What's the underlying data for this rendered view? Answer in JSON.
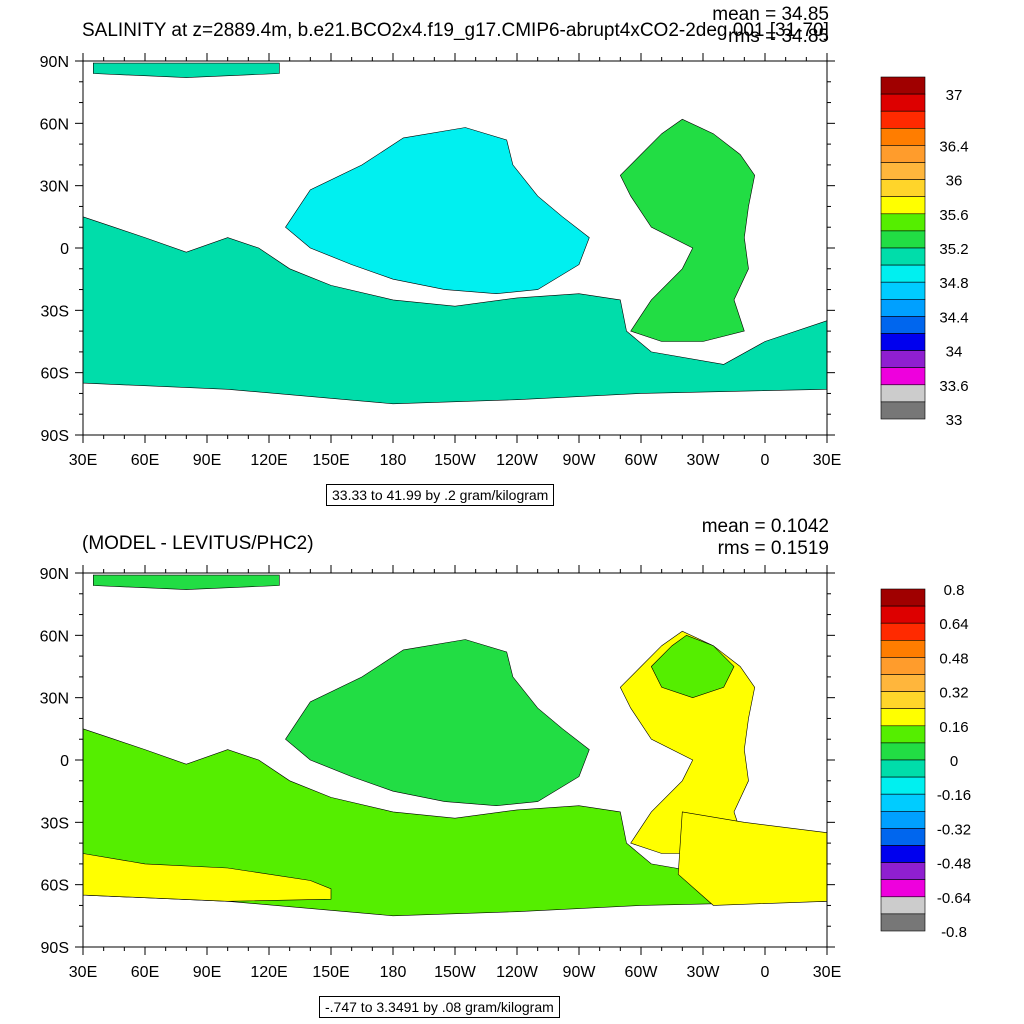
{
  "chart_data": [
    {
      "type": "heatmap",
      "title": "SALINITY at z=2889.4m, b.e21.BCO2x4.f19_g17.CMIP6-abrupt4xCO2-2deg.001 [31-70]",
      "stats": {
        "mean": "mean = 34.85",
        "rms": "rms = 34.85"
      },
      "x_ticks": [
        "30E",
        "60E",
        "90E",
        "120E",
        "150E",
        "180",
        "150W",
        "120W",
        "90W",
        "60W",
        "30W",
        "0",
        "30E"
      ],
      "y_ticks": [
        "90N",
        "60N",
        "30N",
        "0",
        "30S",
        "60S",
        "90S"
      ],
      "xlim": [
        30,
        390
      ],
      "ylim": [
        -90,
        90
      ],
      "range_note": "33.33 to 41.99 by .2 gram/kilogram",
      "legend": {
        "placement": "right",
        "colors": [
          "#a00000",
          "#dd0000",
          "#ff2a00",
          "#ff7d00",
          "#ff9c2c",
          "#ffb63c",
          "#ffd52a",
          "#ffff00",
          "#55ee00",
          "#22dd44",
          "#00ddaa",
          "#00f0f0",
          "#00ccff",
          "#00a0ff",
          "#0066ee",
          "#0000ee",
          "#8f1fd0",
          "#ee00dd",
          "#cccccc",
          "#777777"
        ],
        "labels": [
          {
            "text": "37",
            "boundary": 1
          },
          {
            "text": "36.4",
            "boundary": 4
          },
          {
            "text": "36",
            "boundary": 6
          },
          {
            "text": "35.6",
            "boundary": 8
          },
          {
            "text": "35.2",
            "boundary": 10
          },
          {
            "text": "34.8",
            "boundary": 12
          },
          {
            "text": "34.4",
            "boundary": 14
          },
          {
            "text": "34",
            "boundary": 16
          },
          {
            "text": "33.6",
            "boundary": 18
          },
          {
            "text": "33",
            "boundary": 20
          }
        ]
      },
      "regions": [
        {
          "name": "arctic",
          "fill": "#00ddaa",
          "points": [
            [
              35,
              89
            ],
            [
              125,
              89
            ],
            [
              125,
              84
            ],
            [
              80,
              82
            ],
            [
              35,
              84
            ]
          ]
        },
        {
          "name": "pacific-north",
          "fill": "#00f0f0",
          "points": [
            [
              128,
              10
            ],
            [
              140,
              28
            ],
            [
              165,
              40
            ],
            [
              185,
              53
            ],
            [
              215,
              58
            ],
            [
              235,
              52
            ],
            [
              238,
              40
            ],
            [
              250,
              25
            ],
            [
              262,
              15
            ],
            [
              275,
              5
            ],
            [
              270,
              -8
            ],
            [
              250,
              -20
            ],
            [
              230,
              -22
            ],
            [
              205,
              -20
            ],
            [
              180,
              -15
            ],
            [
              160,
              -8
            ],
            [
              140,
              0
            ]
          ]
        },
        {
          "name": "southern-indo-pacific",
          "fill": "#00ddaa",
          "points": [
            [
              30,
              15
            ],
            [
              45,
              10
            ],
            [
              60,
              5
            ],
            [
              80,
              -2
            ],
            [
              100,
              5
            ],
            [
              115,
              0
            ],
            [
              130,
              -10
            ],
            [
              150,
              -18
            ],
            [
              180,
              -25
            ],
            [
              210,
              -28
            ],
            [
              240,
              -24
            ],
            [
              270,
              -22
            ],
            [
              290,
              -25
            ],
            [
              293,
              -40
            ],
            [
              305,
              -50
            ],
            [
              340,
              -56
            ],
            [
              360,
              -45
            ],
            [
              390,
              -35
            ],
            [
              390,
              -68
            ],
            [
              300,
              -70
            ],
            [
              240,
              -73
            ],
            [
              180,
              -75
            ],
            [
              100,
              -68
            ],
            [
              30,
              -65
            ]
          ]
        },
        {
          "name": "atlantic",
          "fill": "#22dd44",
          "points": [
            [
              290,
              35
            ],
            [
              300,
              45
            ],
            [
              310,
              55
            ],
            [
              320,
              62
            ],
            [
              335,
              55
            ],
            [
              348,
              45
            ],
            [
              355,
              35
            ],
            [
              352,
              20
            ],
            [
              350,
              5
            ],
            [
              352,
              -10
            ],
            [
              345,
              -25
            ],
            [
              350,
              -40
            ],
            [
              330,
              -45
            ],
            [
              310,
              -45
            ],
            [
              295,
              -40
            ],
            [
              305,
              -25
            ],
            [
              320,
              -10
            ],
            [
              325,
              0
            ],
            [
              305,
              10
            ],
            [
              295,
              25
            ]
          ]
        }
      ]
    },
    {
      "type": "heatmap",
      "title": "(MODEL - LEVITUS/PHC2)",
      "stats": {
        "mean": "mean = 0.1042",
        "rms": "rms = 0.1519"
      },
      "x_ticks": [
        "30E",
        "60E",
        "90E",
        "120E",
        "150E",
        "180",
        "150W",
        "120W",
        "90W",
        "60W",
        "30W",
        "0",
        "30E"
      ],
      "y_ticks": [
        "90N",
        "60N",
        "30N",
        "0",
        "30S",
        "60S",
        "90S"
      ],
      "xlim": [
        30,
        390
      ],
      "ylim": [
        -90,
        90
      ],
      "range_note": "-.747 to 3.3491 by .08 gram/kilogram",
      "legend": {
        "placement": "right",
        "colors": [
          "#a00000",
          "#dd0000",
          "#ff2a00",
          "#ff7d00",
          "#ff9c2c",
          "#ffb63c",
          "#ffd52a",
          "#ffff00",
          "#55ee00",
          "#22dd44",
          "#00ddaa",
          "#00f0f0",
          "#00ccff",
          "#00a0ff",
          "#0066ee",
          "#0000ee",
          "#8f1fd0",
          "#ee00dd",
          "#cccccc",
          "#777777"
        ],
        "labels": [
          {
            "text": "0.8",
            "boundary": 0
          },
          {
            "text": "0.64",
            "boundary": 2
          },
          {
            "text": "0.48",
            "boundary": 4
          },
          {
            "text": "0.32",
            "boundary": 6
          },
          {
            "text": "0.16",
            "boundary": 8
          },
          {
            "text": "0",
            "boundary": 10
          },
          {
            "text": "-0.16",
            "boundary": 12
          },
          {
            "text": "-0.32",
            "boundary": 14
          },
          {
            "text": "-0.48",
            "boundary": 16
          },
          {
            "text": "-0.64",
            "boundary": 18
          },
          {
            "text": "-0.8",
            "boundary": 20
          }
        ]
      },
      "regions": [
        {
          "name": "arctic",
          "fill": "#22dd44",
          "points": [
            [
              35,
              89
            ],
            [
              125,
              89
            ],
            [
              125,
              84
            ],
            [
              80,
              82
            ],
            [
              35,
              84
            ]
          ]
        },
        {
          "name": "pacific-north",
          "fill": "#22dd44",
          "points": [
            [
              128,
              10
            ],
            [
              140,
              28
            ],
            [
              165,
              40
            ],
            [
              185,
              53
            ],
            [
              215,
              58
            ],
            [
              235,
              52
            ],
            [
              238,
              40
            ],
            [
              250,
              25
            ],
            [
              262,
              15
            ],
            [
              275,
              5
            ],
            [
              270,
              -8
            ],
            [
              250,
              -20
            ],
            [
              230,
              -22
            ],
            [
              205,
              -20
            ],
            [
              180,
              -15
            ],
            [
              160,
              -8
            ],
            [
              140,
              0
            ]
          ]
        },
        {
          "name": "southern-indo-pacific",
          "fill": "#55ee00",
          "points": [
            [
              30,
              15
            ],
            [
              45,
              10
            ],
            [
              60,
              5
            ],
            [
              80,
              -2
            ],
            [
              100,
              5
            ],
            [
              115,
              0
            ],
            [
              130,
              -10
            ],
            [
              150,
              -18
            ],
            [
              180,
              -25
            ],
            [
              210,
              -28
            ],
            [
              240,
              -24
            ],
            [
              270,
              -22
            ],
            [
              290,
              -25
            ],
            [
              293,
              -40
            ],
            [
              305,
              -50
            ],
            [
              340,
              -56
            ],
            [
              360,
              -45
            ],
            [
              390,
              -35
            ],
            [
              390,
              -68
            ],
            [
              300,
              -70
            ],
            [
              240,
              -73
            ],
            [
              180,
              -75
            ],
            [
              100,
              -68
            ],
            [
              30,
              -65
            ]
          ]
        },
        {
          "name": "southern-yellow-band",
          "fill": "#ffff00",
          "points": [
            [
              30,
              -45
            ],
            [
              60,
              -50
            ],
            [
              100,
              -52
            ],
            [
              140,
              -58
            ],
            [
              150,
              -62
            ],
            [
              150,
              -67
            ],
            [
              100,
              -68
            ],
            [
              30,
              -65
            ]
          ]
        },
        {
          "name": "atlantic",
          "fill": "#ffff00",
          "points": [
            [
              290,
              35
            ],
            [
              300,
              45
            ],
            [
              310,
              55
            ],
            [
              320,
              62
            ],
            [
              335,
              55
            ],
            [
              348,
              45
            ],
            [
              355,
              35
            ],
            [
              352,
              20
            ],
            [
              350,
              5
            ],
            [
              352,
              -10
            ],
            [
              345,
              -25
            ],
            [
              350,
              -40
            ],
            [
              330,
              -45
            ],
            [
              310,
              -45
            ],
            [
              295,
              -40
            ],
            [
              305,
              -25
            ],
            [
              320,
              -10
            ],
            [
              325,
              0
            ],
            [
              305,
              10
            ],
            [
              295,
              25
            ]
          ]
        },
        {
          "name": "atlantic-north-green",
          "fill": "#55ee00",
          "points": [
            [
              305,
              45
            ],
            [
              315,
              55
            ],
            [
              322,
              60
            ],
            [
              335,
              55
            ],
            [
              345,
              45
            ],
            [
              340,
              35
            ],
            [
              325,
              30
            ],
            [
              310,
              35
            ]
          ]
        },
        {
          "name": "atlantic-south-yellow",
          "fill": "#ffff00",
          "points": [
            [
              320,
              -25
            ],
            [
              350,
              -30
            ],
            [
              390,
              -35
            ],
            [
              390,
              -68
            ],
            [
              335,
              -70
            ],
            [
              318,
              -55
            ]
          ]
        }
      ]
    }
  ]
}
